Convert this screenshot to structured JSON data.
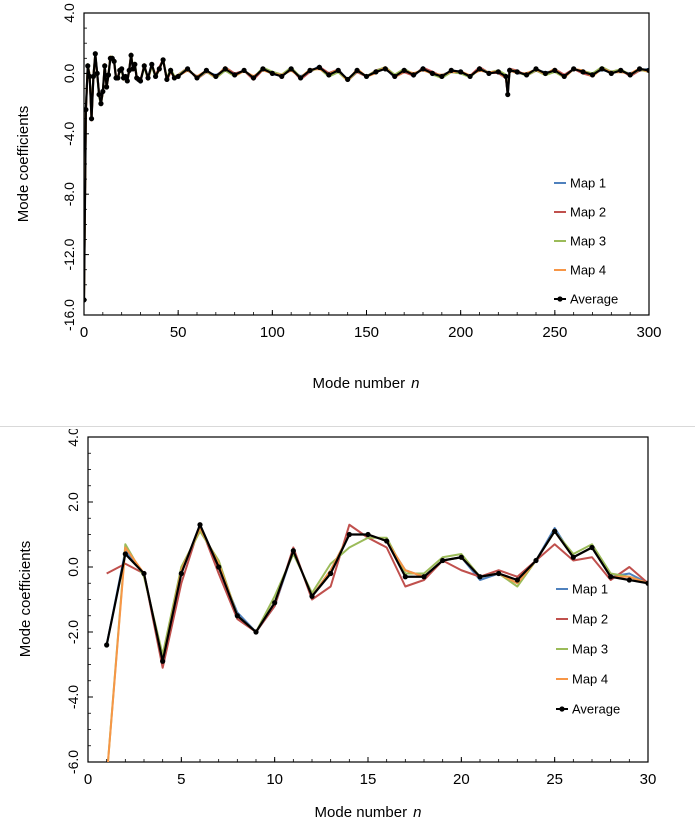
{
  "chart_data": [
    {
      "type": "line",
      "xlabel": "Mode number",
      "xlabel_var": "n",
      "ylabel": "Mode coefficients",
      "xlim": [
        0,
        300
      ],
      "ylim": [
        -16.0,
        4.0
      ],
      "x_ticks": [
        "0",
        "50",
        "100",
        "150",
        "200",
        "250",
        "300"
      ],
      "y_ticks": [
        "-16.0",
        "-12.0",
        "-8.0",
        "-4.0",
        "0.0",
        "4.0"
      ],
      "y_tick_values": [
        -16,
        -12,
        -8,
        -4,
        0,
        4
      ],
      "x_tick_values": [
        0,
        50,
        100,
        150,
        200,
        250,
        300
      ],
      "legend_position": "bottom-right",
      "series": [
        {
          "name": "Map 1",
          "color": "#4f81bd"
        },
        {
          "name": "Map 2",
          "color": "#c0504d"
        },
        {
          "name": "Map 3",
          "color": "#9bbb59"
        },
        {
          "name": "Map 4",
          "color": "#f79646"
        },
        {
          "name": "Average",
          "color": "#000000"
        }
      ],
      "average": {
        "x": [
          0,
          1,
          2,
          3,
          4,
          5,
          6,
          7,
          8,
          9,
          10,
          11,
          12,
          13,
          14,
          15,
          16,
          17,
          18,
          19,
          20,
          21,
          22,
          23,
          24,
          25,
          26,
          27,
          28,
          29,
          30,
          32,
          34,
          36,
          38,
          40,
          42,
          44,
          46,
          48,
          50,
          55,
          60,
          65,
          70,
          75,
          80,
          85,
          90,
          95,
          100,
          105,
          110,
          115,
          120,
          125,
          130,
          135,
          140,
          145,
          150,
          155,
          160,
          165,
          170,
          175,
          180,
          185,
          190,
          195,
          200,
          205,
          210,
          215,
          220,
          224,
          225,
          226,
          230,
          235,
          240,
          245,
          250,
          255,
          260,
          265,
          270,
          275,
          280,
          285,
          290,
          295,
          300
        ],
        "y": [
          -15.0,
          -2.4,
          0.5,
          -0.2,
          -3.0,
          -0.2,
          1.3,
          0.0,
          -1.4,
          -2.0,
          -1.2,
          0.5,
          -0.9,
          -0.1,
          1.0,
          1.0,
          0.8,
          -0.3,
          -0.3,
          0.2,
          0.3,
          -0.3,
          -0.2,
          -0.5,
          0.2,
          1.2,
          0.3,
          0.6,
          -0.3,
          -0.4,
          -0.5,
          0.5,
          -0.3,
          0.6,
          -0.2,
          0.3,
          0.9,
          -0.4,
          0.2,
          -0.3,
          -0.2,
          0.3,
          -0.3,
          0.2,
          -0.2,
          0.3,
          -0.1,
          0.2,
          -0.3,
          0.3,
          0.0,
          -0.2,
          0.3,
          -0.3,
          0.2,
          0.4,
          -0.1,
          0.2,
          -0.4,
          0.2,
          -0.2,
          0.1,
          0.3,
          -0.2,
          0.2,
          -0.1,
          0.3,
          0.0,
          -0.2,
          0.2,
          0.1,
          -0.2,
          0.3,
          0.0,
          0.1,
          -0.2,
          -1.4,
          0.2,
          0.1,
          -0.1,
          0.3,
          0.0,
          0.2,
          -0.2,
          0.3,
          0.1,
          -0.1,
          0.3,
          0.0,
          0.2,
          -0.1,
          0.3,
          0.2
        ]
      }
    },
    {
      "type": "line",
      "xlabel": "Mode number",
      "xlabel_var": "n",
      "ylabel": "Mode coefficients",
      "xlim": [
        0,
        30
      ],
      "ylim": [
        -6.0,
        4.0
      ],
      "x_ticks": [
        "0",
        "5",
        "10",
        "15",
        "20",
        "25",
        "30"
      ],
      "y_ticks": [
        "-6.0",
        "-4.0",
        "-2.0",
        "0.0",
        "2.0",
        "4.0"
      ],
      "y_tick_values": [
        -6,
        -4,
        -2,
        0,
        2,
        4
      ],
      "x_tick_values": [
        0,
        5,
        10,
        15,
        20,
        25,
        30
      ],
      "legend_position": "bottom-right",
      "x": [
        1,
        2,
        3,
        4,
        5,
        6,
        7,
        8,
        9,
        10,
        11,
        12,
        13,
        14,
        15,
        16,
        17,
        18,
        19,
        20,
        21,
        22,
        23,
        24,
        25,
        26,
        27,
        28,
        29,
        30
      ],
      "series": [
        {
          "name": "Map 1",
          "color": "#4f81bd",
          "values": [
            -2.4,
            0.5,
            -0.2,
            -3.0,
            -0.2,
            1.3,
            0.0,
            -1.4,
            -2.0,
            -1.2,
            0.5,
            -0.9,
            -0.1,
            1.0,
            1.0,
            0.8,
            -0.1,
            -0.3,
            0.2,
            0.3,
            -0.4,
            -0.2,
            -0.5,
            0.2,
            1.2,
            0.3,
            0.6,
            -0.3,
            -0.2,
            -0.5
          ]
        },
        {
          "name": "Map 2",
          "color": "#c0504d",
          "values": [
            -0.2,
            0.1,
            -0.2,
            -3.1,
            -0.5,
            1.3,
            -0.2,
            -1.6,
            -2.0,
            -1.2,
            0.6,
            -1.0,
            -0.6,
            1.3,
            0.9,
            0.6,
            -0.6,
            -0.4,
            0.2,
            -0.1,
            -0.3,
            -0.1,
            -0.3,
            0.2,
            0.7,
            0.2,
            0.3,
            -0.4,
            0.0,
            -0.5
          ]
        },
        {
          "name": "Map 3",
          "color": "#9bbb59",
          "values": [
            -6.5,
            0.7,
            -0.3,
            -2.7,
            0.0,
            1.1,
            0.2,
            -1.5,
            -2.0,
            -0.9,
            0.4,
            -0.8,
            0.1,
            0.6,
            0.9,
            0.9,
            -0.2,
            -0.2,
            0.3,
            0.4,
            -0.3,
            -0.2,
            -0.6,
            0.2,
            1.1,
            0.4,
            0.7,
            -0.2,
            -0.3,
            -0.5
          ]
        },
        {
          "name": "Map 4",
          "color": "#f79646",
          "values": [
            -6.5,
            0.6,
            -0.2,
            -2.9,
            -0.1,
            1.2,
            0.1,
            -1.5,
            -2.0,
            -1.1,
            0.5,
            -0.9,
            -0.1,
            1.0,
            1.0,
            0.8,
            -0.1,
            -0.3,
            0.2,
            0.3,
            -0.3,
            -0.2,
            -0.5,
            0.2,
            1.1,
            0.3,
            0.6,
            -0.3,
            -0.3,
            -0.5
          ]
        },
        {
          "name": "Average",
          "color": "#000000",
          "values": [
            -2.4,
            0.4,
            -0.2,
            -2.9,
            -0.2,
            1.3,
            0.0,
            -1.5,
            -2.0,
            -1.1,
            0.5,
            -0.9,
            -0.2,
            1.0,
            1.0,
            0.8,
            -0.3,
            -0.3,
            0.2,
            0.3,
            -0.3,
            -0.2,
            -0.4,
            0.2,
            1.1,
            0.3,
            0.6,
            -0.3,
            -0.4,
            -0.5
          ]
        }
      ]
    }
  ]
}
